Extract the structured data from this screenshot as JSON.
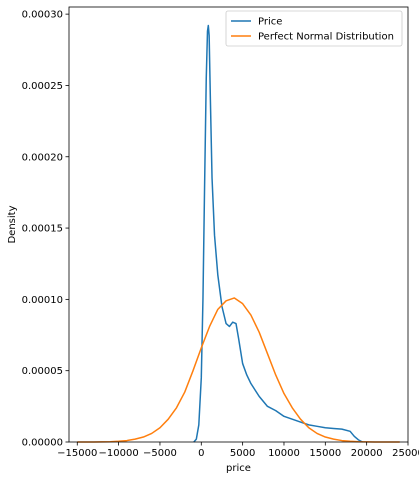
{
  "chart_data": {
    "type": "line",
    "title": "",
    "xlabel": "price",
    "ylabel": "Density",
    "xlim": [
      -16000,
      25000
    ],
    "ylim": [
      0,
      0.000305
    ],
    "x_ticks": [
      -15000,
      -10000,
      -5000,
      0,
      5000,
      10000,
      15000,
      20000,
      25000
    ],
    "x_tick_labels": [
      "−15000",
      "−10000",
      "−5000",
      "0",
      "5000",
      "10000",
      "15000",
      "20000",
      "25000"
    ],
    "y_ticks": [
      0,
      5e-05,
      0.0001,
      0.00015,
      0.0002,
      0.00025,
      0.0003
    ],
    "y_tick_labels": [
      "0.00000",
      "0.00005",
      "0.00010",
      "0.00015",
      "0.00020",
      "0.00025",
      "0.00030"
    ],
    "grid": false,
    "legend_position": "upper right",
    "series": [
      {
        "name": "Price",
        "color": "#1f77b4",
        "x": [
          -900,
          -600,
          -300,
          0,
          200,
          400,
          600,
          750,
          850,
          950,
          1100,
          1300,
          1600,
          2000,
          2500,
          3000,
          3400,
          3800,
          4200,
          4500,
          5000,
          5500,
          6000,
          7000,
          8000,
          9000,
          10000,
          11000,
          12000,
          13000,
          14000,
          15000,
          16000,
          17000,
          18000,
          18500,
          19000,
          19500
        ],
        "y": [
          0,
          2e-06,
          1.2e-05,
          4.5e-05,
          0.0001,
          0.00018,
          0.000255,
          0.000288,
          0.000292,
          0.000285,
          0.00024,
          0.000185,
          0.000145,
          0.000117,
          9.5e-05,
          8.3e-05,
          8.1e-05,
          8.4e-05,
          8.3e-05,
          7.3e-05,
          5.5e-05,
          4.7e-05,
          4.1e-05,
          3.2e-05,
          2.5e-05,
          2.2e-05,
          1.8e-05,
          1.6e-05,
          1.4e-05,
          1.2e-05,
          1.1e-05,
          1e-05,
          9.5e-06,
          9e-06,
          7.5e-06,
          4e-06,
          1.5e-06,
          0
        ]
      },
      {
        "name": "Perfect Normal Distribution",
        "color": "#ff7f0e",
        "x": [
          -15000,
          -13000,
          -11000,
          -10000,
          -9000,
          -8000,
          -7000,
          -6000,
          -5000,
          -4000,
          -3000,
          -2000,
          -1000,
          0,
          1000,
          2000,
          3000,
          4000,
          5000,
          6000,
          7000,
          8000,
          9000,
          10000,
          11000,
          12000,
          13000,
          14000,
          15000,
          16000,
          17000,
          18000,
          19000,
          20000,
          21000,
          22000,
          23000,
          24000
        ],
        "y": [
          0,
          0,
          2e-07,
          5e-07,
          1e-06,
          2e-06,
          3.5e-06,
          6e-06,
          1e-05,
          1.6e-05,
          2.4e-05,
          3.5e-05,
          5e-05,
          6.6e-05,
          8.1e-05,
          9.3e-05,
          9.9e-05,
          0.000101,
          9.7e-05,
          8.9e-05,
          7.7e-05,
          6.2e-05,
          4.7e-05,
          3.4e-05,
          2.4e-05,
          1.6e-05,
          1e-05,
          6e-06,
          3.5e-06,
          2e-06,
          1e-06,
          5e-07,
          2e-07,
          1e-07,
          0,
          0,
          0,
          0
        ]
      }
    ]
  }
}
